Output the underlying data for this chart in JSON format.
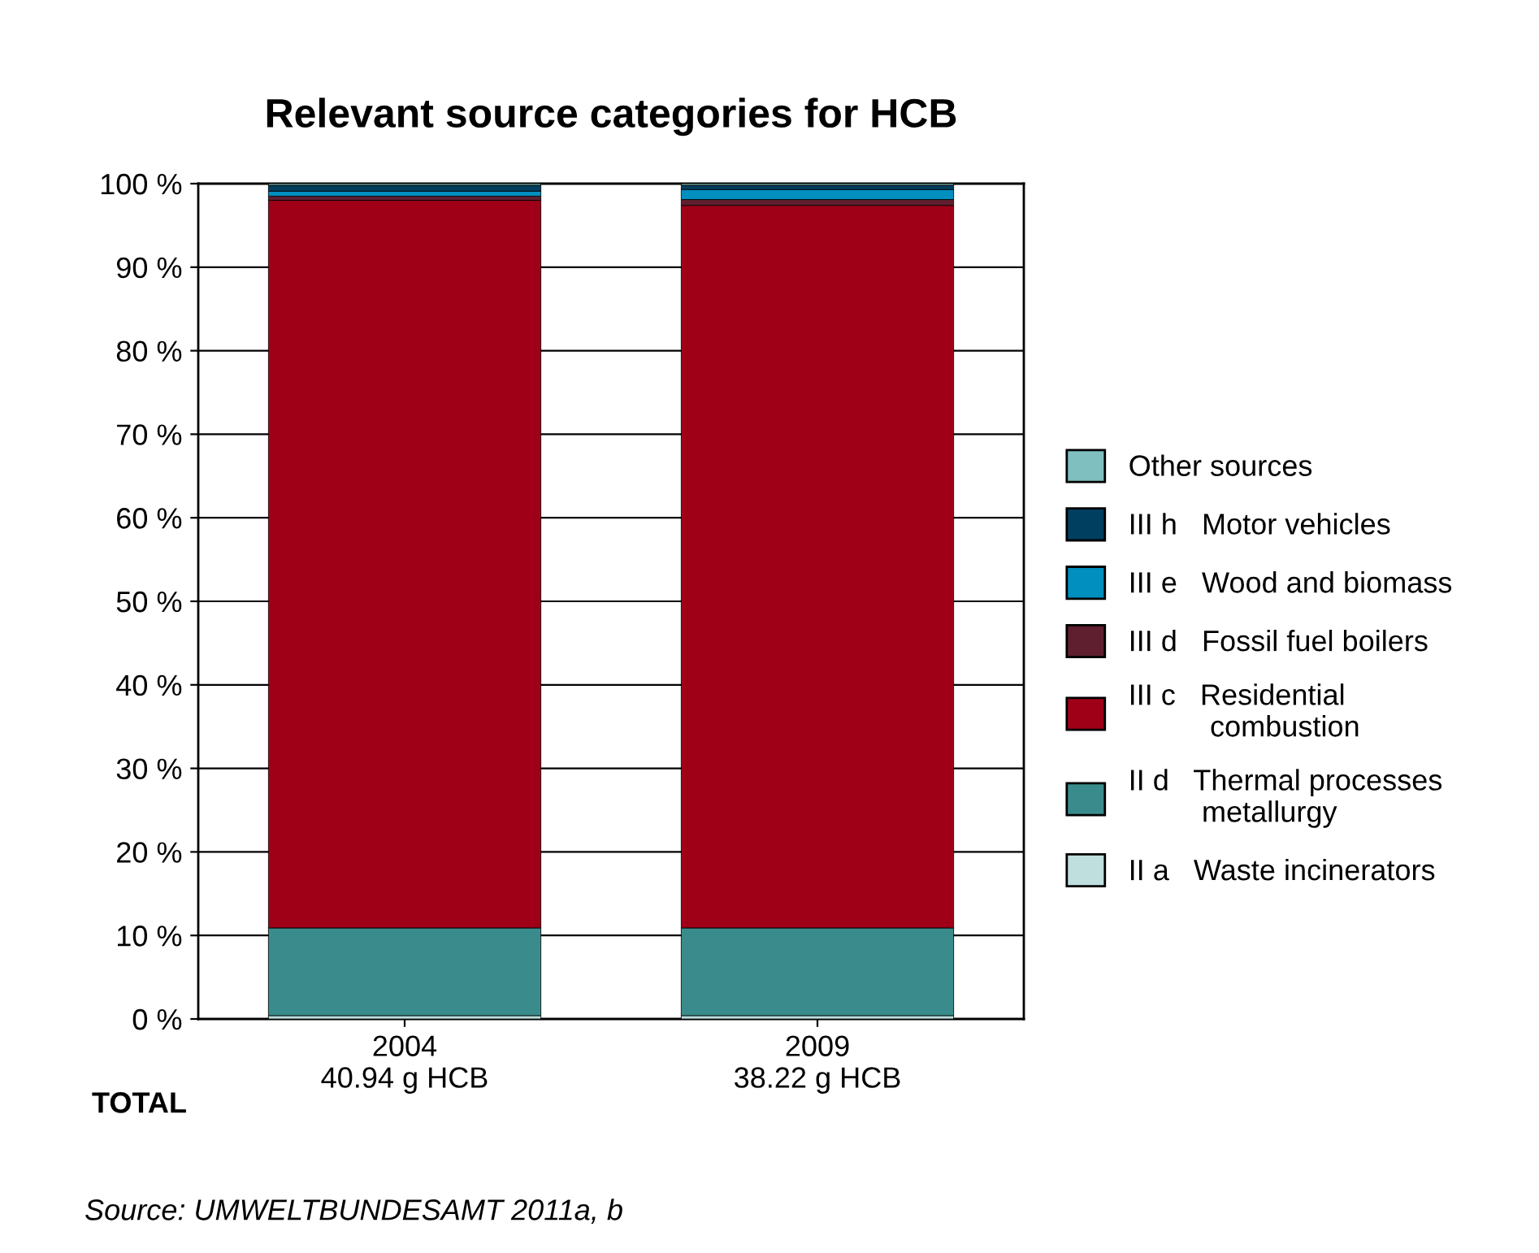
{
  "chart_data": {
    "type": "bar",
    "title": "Relevant source categories for HCB",
    "stacked": true,
    "categories": [
      "2004\n40.94 g HCB",
      "2009\n38.22 g HCB"
    ],
    "series": [
      {
        "name": "II a   Waste incinerators",
        "color": "#bfdfdf",
        "values": [
          0.4,
          0.4
        ]
      },
      {
        "name": "II d   Thermal processes\n         metallurgy",
        "color": "#3a8c8c",
        "values": [
          10.5,
          10.5
        ]
      },
      {
        "name": "III c   Residential\n          combustion",
        "color": "#9f0018",
        "values": [
          87.1,
          86.5
        ]
      },
      {
        "name": "III d   Fossil fuel boilers",
        "color": "#5f1f2f",
        "values": [
          0.5,
          0.7
        ]
      },
      {
        "name": "III e   Wood and biomass",
        "color": "#008fbf",
        "values": [
          0.6,
          1.2
        ]
      },
      {
        "name": "III h   Motor vehicles",
        "color": "#003f5f",
        "values": [
          0.7,
          0.5
        ]
      },
      {
        "name": "Other sources",
        "color": "#7fbfbf",
        "values": [
          0.2,
          0.2
        ]
      }
    ],
    "ylim": [
      0,
      100
    ],
    "yticks": [
      {
        "value": 0,
        "label": "0 %"
      },
      {
        "value": 10,
        "label": "10 %"
      },
      {
        "value": 20,
        "label": "20 %"
      },
      {
        "value": 30,
        "label": "30 %"
      },
      {
        "value": 40,
        "label": "40 %"
      },
      {
        "value": 50,
        "label": "50 %"
      },
      {
        "value": 60,
        "label": "60 %"
      },
      {
        "value": 70,
        "label": "70 %"
      },
      {
        "value": 80,
        "label": "80 %"
      },
      {
        "value": 90,
        "label": "90 %"
      },
      {
        "value": 100,
        "label": "100 %"
      }
    ],
    "grid": "y",
    "legend": "right",
    "annotations": [
      "TOTAL",
      "Source: UMWELTBUNDESAMT 2011a, b"
    ]
  }
}
